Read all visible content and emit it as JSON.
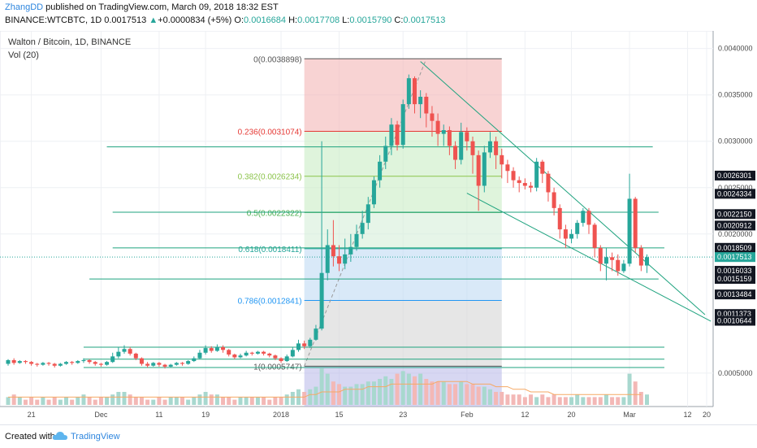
{
  "header": {
    "author": "ZhangDD",
    "publish_text": "published on TradingView.com, March 09, 2018 18:32 EST",
    "symbol_line": "BINANCE:WTCBTC, 1D",
    "price_now": "0.0017513",
    "arrow": "▲",
    "change": "+0.0000834 (+5%)",
    "o_label": "O:",
    "o_value": "0.0016684",
    "h_label": "H:",
    "h_value": "0.0017708",
    "l_label": "L:",
    "l_value": "0.0015790",
    "c_label": "C:",
    "c_value": "0.0017513"
  },
  "chart_title": "Walton / Bitcoin, 1D, BINANCE",
  "volume_label": "Vol (20)",
  "footer": {
    "created_with": "Created with",
    "brand": "TradingView"
  },
  "colors": {
    "up": "#26a69a",
    "down": "#ef5350",
    "line": "#1fa37f",
    "sma": "#f6a964",
    "fib_red": "#f4b6b6",
    "fib_green": "#c9ecc4",
    "fib_blue": "#bfdaf3",
    "fib_gray": "#d5d5d5",
    "last_price": "#26a69a"
  },
  "chart_data": {
    "type": "candlestick",
    "y_axis_range": [
      0.00035,
      0.00412
    ],
    "y_ticks": [
      "0.0040000",
      "0.0035000",
      "0.0030000",
      "0.0025000",
      "0.0020000",
      "0.0005000"
    ],
    "x_tick_labels": [
      "21",
      "Dec",
      "11",
      "19",
      "2018",
      "15",
      "23",
      "Feb",
      "12",
      "20",
      "Mar",
      "12",
      "20"
    ],
    "price_markers": [
      {
        "value": "0.0026301",
        "color": "#131722"
      },
      {
        "value": "0.0024334",
        "color": "#131722"
      },
      {
        "value": "0.0022150",
        "color": "#131722"
      },
      {
        "value": "0.0020912",
        "color": "#131722"
      },
      {
        "value": "0.0018509",
        "color": "#131722"
      },
      {
        "value": "0.0017513",
        "color": "#26a69a"
      },
      {
        "value": "0.0016033",
        "color": "#131722"
      },
      {
        "value": "0.0015159",
        "color": "#131722"
      },
      {
        "value": "0.0013484",
        "color": "#131722"
      },
      {
        "value": "0.0011373",
        "color": "#131722"
      },
      {
        "value": "0.0010644",
        "color": "#131722"
      }
    ],
    "fib_levels": [
      {
        "ratio": "0",
        "label": "0(0.0038898)",
        "price": 0.0038898,
        "color": "#555555"
      },
      {
        "ratio": "0.236",
        "label": "0.236(0.0031074)",
        "price": 0.0031074,
        "color": "#e53935"
      },
      {
        "ratio": "0.382",
        "label": "0.382(0.0026234)",
        "price": 0.0026234,
        "color": "#8bc34a"
      },
      {
        "ratio": "0.5",
        "label": "0.5(0.0022322)",
        "price": 0.0022322,
        "color": "#4caf50"
      },
      {
        "ratio": "0.618",
        "label": "0.618(0.0018411)",
        "price": 0.0018411,
        "color": "#26a69a"
      },
      {
        "ratio": "0.786",
        "label": "0.786(0.0012841)",
        "price": 0.0012841,
        "color": "#2196f3"
      },
      {
        "ratio": "1",
        "label": "1(0.0005747)",
        "price": 0.0005747,
        "color": "#555555"
      }
    ],
    "horizontal_lines": [
      0.00294,
      0.002235,
      0.00185,
      0.001515,
      0.00078,
      0.00065,
      0.00056
    ],
    "trendlines": [
      {
        "from": [
          0.00388
        ],
        "to": [
          0.00106
        ]
      },
      {
        "from": [
          0.0024334
        ],
        "to": [
          0.0011373
        ]
      }
    ],
    "candles": [
      [
        0.0006,
        0.00064,
        0.00058,
        0.00065
      ],
      [
        0.00064,
        0.00061,
        0.00059,
        0.00066
      ],
      [
        0.00061,
        0.00063,
        0.0006,
        0.00064
      ],
      [
        0.00063,
        0.00062,
        0.0006,
        0.00064
      ],
      [
        0.00062,
        0.0006,
        0.00058,
        0.00063
      ],
      [
        0.0006,
        0.00059,
        0.00057,
        0.00061
      ],
      [
        0.00059,
        0.00061,
        0.00058,
        0.00062
      ],
      [
        0.00061,
        0.0006,
        0.00058,
        0.00062
      ],
      [
        0.0006,
        0.00058,
        0.00056,
        0.00061
      ],
      [
        0.00058,
        0.0006,
        0.00057,
        0.00061
      ],
      [
        0.0006,
        0.00062,
        0.00059,
        0.00063
      ],
      [
        0.00062,
        0.00061,
        0.00059,
        0.00063
      ],
      [
        0.00061,
        0.00063,
        0.0006,
        0.00064
      ],
      [
        0.00063,
        0.00064,
        0.00061,
        0.00066
      ],
      [
        0.00064,
        0.00062,
        0.0006,
        0.00065
      ],
      [
        0.00062,
        0.0006,
        0.00058,
        0.00063
      ],
      [
        0.0006,
        0.00059,
        0.00057,
        0.00061
      ],
      [
        0.00059,
        0.00062,
        0.00058,
        0.00063
      ],
      [
        0.00062,
        0.00068,
        0.00061,
        0.00072
      ],
      [
        0.00068,
        0.00073,
        0.00066,
        0.00078
      ],
      [
        0.00073,
        0.00076,
        0.00071,
        0.0008
      ],
      [
        0.00076,
        0.00071,
        0.00069,
        0.00078
      ],
      [
        0.00071,
        0.00066,
        0.00064,
        0.00072
      ],
      [
        0.00066,
        0.0006,
        0.00058,
        0.00067
      ],
      [
        0.0006,
        0.00058,
        0.00056,
        0.00062
      ],
      [
        0.00058,
        0.00061,
        0.00057,
        0.00062
      ],
      [
        0.00061,
        0.00059,
        0.00057,
        0.00062
      ],
      [
        0.00059,
        0.00057,
        0.00055,
        0.0006
      ],
      [
        0.00057,
        0.00059,
        0.00056,
        0.0006
      ],
      [
        0.00059,
        0.00061,
        0.00058,
        0.00062
      ],
      [
        0.00061,
        0.0006,
        0.00058,
        0.00062
      ],
      [
        0.0006,
        0.00063,
        0.00059,
        0.00064
      ],
      [
        0.00063,
        0.00066,
        0.00062,
        0.00068
      ],
      [
        0.00066,
        0.00072,
        0.00065,
        0.00075
      ],
      [
        0.00072,
        0.00077,
        0.0007,
        0.0008
      ],
      [
        0.00077,
        0.00074,
        0.00072,
        0.00079
      ],
      [
        0.00074,
        0.00078,
        0.00073,
        0.00081
      ],
      [
        0.00078,
        0.00075,
        0.00072,
        0.0008
      ],
      [
        0.00075,
        0.0007,
        0.00068,
        0.00076
      ],
      [
        0.0007,
        0.00067,
        0.00065,
        0.00071
      ],
      [
        0.00067,
        0.00069,
        0.00066,
        0.00071
      ],
      [
        0.00069,
        0.00072,
        0.00068,
        0.00074
      ],
      [
        0.00072,
        0.00071,
        0.00069,
        0.00073
      ],
      [
        0.00071,
        0.00073,
        0.0007,
        0.00074
      ],
      [
        0.00073,
        0.00071,
        0.00069,
        0.00074
      ],
      [
        0.00071,
        0.00069,
        0.00067,
        0.00072
      ],
      [
        0.00069,
        0.00066,
        0.00064,
        0.0007
      ],
      [
        0.00066,
        0.00063,
        0.00061,
        0.00067
      ],
      [
        0.00063,
        0.00068,
        0.00062,
        0.0007
      ],
      [
        0.00068,
        0.00075,
        0.00067,
        0.00078
      ],
      [
        0.00075,
        0.00082,
        0.00073,
        0.00086
      ],
      [
        0.00082,
        0.00079,
        0.00076,
        0.00085
      ],
      [
        0.00079,
        0.00086,
        0.00077,
        0.00088
      ],
      [
        0.00086,
        0.00098,
        0.00085,
        0.00102
      ],
      [
        0.00098,
        0.00158,
        0.00096,
        0.003
      ],
      [
        0.00158,
        0.00188,
        0.0015,
        0.00205
      ],
      [
        0.00188,
        0.00176,
        0.00165,
        0.00215
      ],
      [
        0.00176,
        0.00168,
        0.0016,
        0.00188
      ],
      [
        0.00168,
        0.00178,
        0.00162,
        0.00195
      ],
      [
        0.00178,
        0.00186,
        0.0017,
        0.002
      ],
      [
        0.00186,
        0.002,
        0.00182,
        0.0021
      ],
      [
        0.002,
        0.00212,
        0.00195,
        0.00225
      ],
      [
        0.00212,
        0.00232,
        0.00205,
        0.0024
      ],
      [
        0.00232,
        0.00258,
        0.00228,
        0.00262
      ],
      [
        0.00258,
        0.00278,
        0.0025,
        0.00285
      ],
      [
        0.00278,
        0.00295,
        0.0027,
        0.00305
      ],
      [
        0.00295,
        0.00318,
        0.00285,
        0.00325
      ],
      [
        0.00318,
        0.00296,
        0.0029,
        0.00322
      ],
      [
        0.00296,
        0.0034,
        0.00292,
        0.00345
      ],
      [
        0.0034,
        0.00368,
        0.00335,
        0.00372
      ],
      [
        0.00368,
        0.0034,
        0.0033,
        0.0037
      ],
      [
        0.0034,
        0.00348,
        0.00325,
        0.00355
      ],
      [
        0.00348,
        0.0033,
        0.00315,
        0.00352
      ],
      [
        0.0033,
        0.00322,
        0.00305,
        0.00338
      ],
      [
        0.00322,
        0.00308,
        0.00295,
        0.0033
      ],
      [
        0.00308,
        0.00312,
        0.00295,
        0.00318
      ],
      [
        0.00312,
        0.00295,
        0.00285,
        0.00316
      ],
      [
        0.00295,
        0.0028,
        0.0027,
        0.003
      ],
      [
        0.0028,
        0.0031,
        0.00275,
        0.0032
      ],
      [
        0.0031,
        0.003,
        0.0029,
        0.00315
      ],
      [
        0.003,
        0.00285,
        0.00265,
        0.00305
      ],
      [
        0.00285,
        0.00252,
        0.00225,
        0.0029
      ],
      [
        0.00252,
        0.00288,
        0.00245,
        0.00295
      ],
      [
        0.00288,
        0.003,
        0.00282,
        0.0031
      ],
      [
        0.003,
        0.00285,
        0.0027,
        0.00305
      ],
      [
        0.00285,
        0.00275,
        0.0026,
        0.00292
      ],
      [
        0.00275,
        0.00268,
        0.00255,
        0.0028
      ],
      [
        0.00268,
        0.00258,
        0.0025,
        0.00272
      ],
      [
        0.00258,
        0.00255,
        0.00245,
        0.00262
      ],
      [
        0.00255,
        0.00252,
        0.00248,
        0.0026
      ],
      [
        0.00252,
        0.0025,
        0.00245,
        0.00256
      ],
      [
        0.0025,
        0.00278,
        0.00246,
        0.00282
      ],
      [
        0.00278,
        0.00265,
        0.00255,
        0.0028
      ],
      [
        0.00265,
        0.00245,
        0.00235,
        0.00268
      ],
      [
        0.00245,
        0.00228,
        0.0022,
        0.0025
      ],
      [
        0.00228,
        0.00205,
        0.00195,
        0.00232
      ],
      [
        0.00205,
        0.00195,
        0.00185,
        0.0021
      ],
      [
        0.00195,
        0.002,
        0.0019,
        0.00205
      ],
      [
        0.002,
        0.00212,
        0.00195,
        0.00215
      ],
      [
        0.00212,
        0.00225,
        0.00208,
        0.00228
      ],
      [
        0.00225,
        0.0021,
        0.002,
        0.00228
      ],
      [
        0.0021,
        0.00185,
        0.00175,
        0.00212
      ],
      [
        0.00185,
        0.00168,
        0.0016,
        0.00188
      ],
      [
        0.00168,
        0.00175,
        0.0015,
        0.00185
      ],
      [
        0.00175,
        0.00172,
        0.0016,
        0.0018
      ],
      [
        0.00172,
        0.0016,
        0.00155,
        0.00178
      ],
      [
        0.0016,
        0.00168,
        0.00158,
        0.00172
      ],
      [
        0.00168,
        0.00238,
        0.00165,
        0.00265
      ],
      [
        0.00238,
        0.00185,
        0.0018,
        0.0024
      ],
      [
        0.00185,
        0.00166,
        0.0016,
        0.00188
      ],
      [
        0.00166,
        0.00175,
        0.00158,
        0.00178
      ]
    ],
    "volume_relative": [
      3,
      4,
      3,
      2,
      3,
      2,
      3,
      2,
      3,
      2,
      3,
      2,
      3,
      4,
      3,
      2,
      3,
      3,
      4,
      5,
      5,
      4,
      3,
      3,
      2,
      2,
      3,
      2,
      3,
      3,
      3,
      2,
      3,
      4,
      5,
      4,
      4,
      3,
      3,
      2,
      3,
      3,
      3,
      3,
      3,
      2,
      3,
      3,
      4,
      5,
      6,
      5,
      6,
      7,
      14,
      12,
      9,
      8,
      7,
      7,
      8,
      8,
      9,
      9,
      10,
      11,
      10,
      12,
      13,
      12,
      11,
      12,
      10,
      9,
      9,
      9,
      8,
      8,
      9,
      8,
      8,
      7,
      7,
      6,
      5,
      5,
      4,
      4,
      4,
      3,
      4,
      3,
      4,
      3,
      4,
      3,
      3,
      3,
      4,
      3,
      3,
      3,
      3,
      4,
      3,
      3,
      3,
      12,
      9,
      5,
      4
    ],
    "sma_relative": [
      3,
      3,
      3,
      3,
      3,
      3,
      3,
      3,
      3,
      3,
      3,
      3,
      3,
      3,
      3,
      3,
      3,
      3,
      3,
      3,
      3,
      3,
      3,
      3,
      3,
      3,
      3,
      3,
      3,
      3,
      3,
      3,
      3,
      3,
      3,
      3,
      3,
      3,
      3,
      3,
      3,
      3,
      3,
      3,
      3,
      3,
      3,
      3,
      3,
      3,
      3,
      3,
      4,
      4,
      5,
      5,
      5,
      5,
      6,
      6,
      6,
      6,
      7,
      7,
      7,
      7,
      8,
      8,
      8,
      8,
      8,
      8,
      8,
      8,
      9,
      9,
      9,
      9,
      9,
      9,
      8,
      8,
      8,
      8,
      7,
      7,
      7,
      6,
      6,
      6,
      5,
      5,
      5,
      5,
      4,
      4,
      4,
      4,
      4,
      4,
      4,
      4,
      4,
      4,
      4,
      4,
      4,
      4,
      4,
      4
    ]
  }
}
